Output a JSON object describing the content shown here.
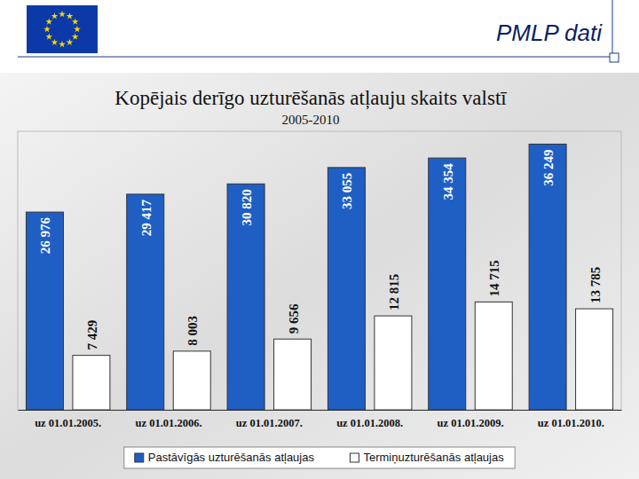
{
  "header": "PMLP dati",
  "chart_data": {
    "type": "bar",
    "title": "Kopējais derīgo uzturēšanās atļauju skaits valstī",
    "subtitle": "2005-2010",
    "categories": [
      "uz 01.01.2005.",
      "uz 01.01.2006.",
      "uz 01.01.2007.",
      "uz 01.01.2008.",
      "uz 01.01.2009.",
      "uz 01.01.2010."
    ],
    "series": [
      {
        "name": "Pastāvīgās uzturēšanās atļaujas",
        "color": "#1f5fc4",
        "values": [
          26976,
          29417,
          30820,
          33055,
          34354,
          36249
        ],
        "value_labels": [
          "26 976",
          "29 417",
          "30 820",
          "33 055",
          "34 354",
          "36 249"
        ]
      },
      {
        "name": "Termiņuzturēšanās atļaujas",
        "color": "#ffffff",
        "values": [
          7429,
          8003,
          9656,
          12815,
          14715,
          13785
        ],
        "value_labels": [
          "7 429",
          "8 003",
          "9 656",
          "12 815",
          "14 715",
          "13 785"
        ]
      }
    ],
    "ylim": [
      0,
      38000
    ],
    "grid": false,
    "legend": "bottom",
    "data_labels": true,
    "tick_labels": "x"
  }
}
